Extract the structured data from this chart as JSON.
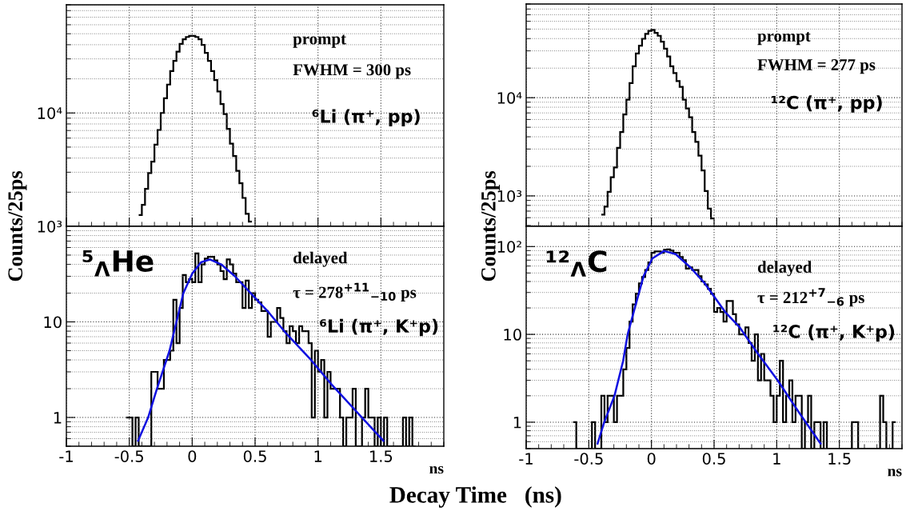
{
  "chart_data": [
    {
      "type": "histogram",
      "color": "#000000",
      "ylabel": "Counts/25ps",
      "bins": [
        -0.425,
        -0.4,
        -0.375,
        -0.35,
        -0.325,
        -0.3,
        -0.275,
        -0.25,
        -0.225,
        -0.2,
        -0.175,
        -0.15,
        -0.125,
        -0.1,
        -0.075,
        -0.05,
        -0.025,
        0,
        0.025,
        0.05,
        0.075,
        0.1,
        0.125,
        0.15,
        0.175,
        0.2,
        0.225,
        0.25,
        0.275,
        0.3,
        0.325,
        0.35,
        0.375,
        0.4,
        0.425,
        0.45,
        0.475
      ],
      "values": [
        1260,
        1550,
        2140,
        2950,
        3720,
        5250,
        7080,
        10000,
        13500,
        17800,
        23400,
        28800,
        34700,
        40700,
        44700,
        46800,
        47900,
        47900,
        46800,
        44700,
        39800,
        33900,
        28800,
        23400,
        19500,
        15500,
        12000,
        9770,
        7240,
        5370,
        4170,
        3090,
        2400,
        1780,
        1290,
        1100
      ],
      "xlim": [
        -1,
        2
      ],
      "ylim": [
        1000,
        90000
      ],
      "xticks": [
        -1,
        -0.5,
        0,
        0.5,
        1,
        1.5
      ],
      "yticks": [
        {
          "value": 1000,
          "label": "10³"
        },
        {
          "value": 10000,
          "label": "10⁴"
        }
      ],
      "log": true,
      "grid": true,
      "tick_labels": "y",
      "annotations": [
        "prompt",
        "FWHM = 300 ps",
        "⁶Li (π⁺, pp)"
      ]
    },
    {
      "type": "histogram",
      "color": "#000000",
      "ylabel": "Counts/25ps",
      "bins": [
        -0.4,
        -0.375,
        -0.35,
        -0.325,
        -0.3,
        -0.275,
        -0.25,
        -0.225,
        -0.2,
        -0.175,
        -0.15,
        -0.125,
        -0.1,
        -0.075,
        -0.05,
        -0.025,
        0,
        0.025,
        0.05,
        0.075,
        0.1,
        0.125,
        0.15,
        0.175,
        0.2,
        0.225,
        0.25,
        0.275,
        0.3,
        0.325,
        0.35,
        0.375,
        0.4,
        0.425,
        0.45,
        0.475,
        0.5
      ],
      "values": [
        645,
        776,
        1100,
        1550,
        1950,
        3090,
        4470,
        6760,
        9550,
        14100,
        20900,
        28200,
        33900,
        39800,
        44700,
        47900,
        49000,
        45700,
        42700,
        37200,
        31600,
        26300,
        20900,
        17800,
        14800,
        12900,
        9550,
        7760,
        6310,
        4470,
        3550,
        2570,
        1820,
        1120,
        741,
        589
      ],
      "xlim": [
        -1,
        2
      ],
      "ylim": [
        490,
        90000
      ],
      "xticks": [
        -1,
        -0.5,
        0,
        0.5,
        1,
        1.5
      ],
      "yticks": [
        {
          "value": 1000,
          "label": "10³"
        },
        {
          "value": 10000,
          "label": "10⁴"
        }
      ],
      "log": true,
      "grid": true,
      "tick_labels": "y",
      "annotations": [
        "prompt",
        "FWHM = 277 ps",
        "¹²C (π⁺, pp)"
      ]
    },
    {
      "type": "histogram",
      "color": "#000000",
      "xlabel": "ns",
      "bins": [
        -0.525,
        -0.5,
        -0.475,
        -0.45,
        -0.425,
        -0.4,
        -0.375,
        -0.35,
        -0.325,
        -0.3,
        -0.275,
        -0.25,
        -0.225,
        -0.2,
        -0.175,
        -0.15,
        -0.125,
        -0.1,
        -0.075,
        -0.05,
        -0.025,
        0,
        0.025,
        0.05,
        0.075,
        0.1,
        0.125,
        0.15,
        0.175,
        0.2,
        0.225,
        0.25,
        0.275,
        0.3,
        0.325,
        0.35,
        0.375,
        0.4,
        0.425,
        0.45,
        0.475,
        0.5,
        0.525,
        0.55,
        0.575,
        0.6,
        0.625,
        0.65,
        0.675,
        0.7,
        0.725,
        0.75,
        0.775,
        0.8,
        0.825,
        0.85,
        0.875,
        0.9,
        0.925,
        0.95,
        0.975,
        1,
        1.025,
        1.05,
        1.075,
        1.1,
        1.125,
        1.15,
        1.175,
        1.2,
        1.225,
        1.25,
        1.275,
        1.3,
        1.325,
        1.35,
        1.375,
        1.4,
        1.425,
        1.45,
        1.475,
        1.5,
        1.525,
        1.55,
        1.575,
        1.6,
        1.625,
        1.65,
        1.675,
        1.7,
        1.725,
        1.75,
        1.775
      ],
      "values": [
        1,
        1,
        null,
        1,
        null,
        null,
        null,
        null,
        3,
        3,
        2,
        2,
        4,
        4,
        5,
        17,
        6,
        14,
        31,
        26,
        28,
        26,
        52,
        26,
        40,
        46,
        48,
        48,
        44,
        40,
        34,
        28,
        45,
        40,
        32,
        26,
        26,
        14,
        27,
        14,
        20,
        17,
        16,
        13,
        13,
        7,
        10,
        10,
        14,
        11,
        8,
        6,
        9,
        8,
        6,
        9,
        8,
        8,
        6,
        1,
        5,
        3,
        4,
        1,
        3,
        2,
        2,
        2,
        1,
        null,
        1,
        1,
        2,
        null,
        null,
        1,
        2,
        1,
        1,
        null,
        1,
        null,
        1,
        null,
        null,
        null,
        null,
        null,
        1,
        null,
        1,
        null
      ],
      "series": [
        {
          "type": "line",
          "color": "#1010e0",
          "x": [
            -0.43,
            -0.35,
            -0.28,
            -0.18,
            -0.125,
            -0.07,
            0,
            0.07,
            0.14,
            0.23,
            0.34,
            0.48,
            0.61,
            0.75,
            0.93,
            1.11,
            1.32,
            1.52
          ],
          "values": [
            0.57,
            1,
            2,
            5,
            10,
            20,
            32,
            42,
            45,
            40,
            30,
            19,
            12.5,
            7.5,
            4.2,
            2.2,
            1.1,
            0.57
          ]
        }
      ],
      "xlim": [
        -1,
        2
      ],
      "ylim": [
        0.5,
        100
      ],
      "xticks": [
        -1,
        -0.5,
        0,
        0.5,
        1,
        1.5
      ],
      "yticks": [
        1,
        10
      ],
      "log": true,
      "grid": true,
      "annotations": [
        "⁵$_{Λ}$He",
        "delayed",
        "τ = 278$^{+11}$$_{−10}$ ps",
        "⁶Li (π⁺, K⁺p)"
      ]
    },
    {
      "type": "histogram",
      "color": "#000000",
      "xlabel": "ns",
      "bins": [
        -0.625,
        -0.6,
        -0.575,
        -0.55,
        -0.525,
        -0.5,
        -0.475,
        -0.45,
        -0.425,
        -0.4,
        -0.375,
        -0.35,
        -0.325,
        -0.3,
        -0.275,
        -0.25,
        -0.225,
        -0.2,
        -0.175,
        -0.15,
        -0.125,
        -0.1,
        -0.075,
        -0.05,
        -0.025,
        0,
        0.025,
        0.05,
        0.075,
        0.1,
        0.125,
        0.15,
        0.175,
        0.2,
        0.225,
        0.25,
        0.275,
        0.3,
        0.325,
        0.35,
        0.375,
        0.4,
        0.425,
        0.45,
        0.475,
        0.5,
        0.525,
        0.55,
        0.575,
        0.6,
        0.625,
        0.65,
        0.675,
        0.7,
        0.725,
        0.75,
        0.775,
        0.8,
        0.825,
        0.85,
        0.875,
        0.9,
        0.925,
        0.95,
        0.975,
        1,
        1.025,
        1.05,
        1.075,
        1.1,
        1.125,
        1.15,
        1.175,
        1.2,
        1.225,
        1.25,
        1.275,
        1.3,
        1.325,
        1.35,
        1.375,
        1.4,
        1.425,
        1.45,
        1.475,
        1.5,
        1.525,
        1.55,
        1.575,
        1.6,
        1.625,
        1.65,
        1.675,
        1.7,
        1.725,
        1.75,
        1.775,
        1.8,
        1.825,
        1.85,
        1.875,
        1.9,
        1.925,
        1.95
      ],
      "values": [
        1,
        null,
        null,
        null,
        null,
        null,
        1,
        null,
        null,
        2,
        1,
        2,
        2,
        1,
        2,
        2,
        4,
        7,
        14,
        22,
        29,
        38,
        45,
        54,
        66,
        85,
        88,
        88,
        85,
        92,
        93,
        90,
        85,
        85,
        76,
        70,
        56,
        58,
        54,
        54,
        46,
        40,
        37,
        33,
        29,
        18,
        20,
        18,
        14,
        24,
        24,
        17,
        13,
        10,
        10,
        12,
        8,
        5,
        10,
        3,
        6,
        3,
        3,
        2,
        1,
        2,
        5,
        1,
        2,
        3,
        1,
        2,
        2,
        null,
        1,
        2,
        null,
        1,
        1,
        null,
        1,
        null,
        null,
        null,
        null,
        null,
        null,
        null,
        null,
        1,
        1,
        null,
        null,
        null,
        null,
        null,
        null,
        null,
        2,
        1,
        null,
        null,
        1
      ],
      "series": [
        {
          "type": "line",
          "color": "#1010e0",
          "x": [
            -0.43,
            -0.377,
            -0.295,
            -0.226,
            -0.19,
            -0.133,
            -0.063,
            0.007,
            0.1,
            0.193,
            0.31,
            0.426,
            0.588,
            0.705,
            0.844,
            1.007,
            1.17,
            1.35
          ],
          "values": [
            0.57,
            1,
            2,
            5,
            10,
            20,
            46,
            73,
            89,
            82,
            58,
            38,
            18,
            12,
            6.2,
            3,
            1.34,
            0.57
          ]
        }
      ],
      "xlim": [
        -1,
        2
      ],
      "ylim": [
        0.5,
        170
      ],
      "xticks": [
        -1,
        -0.5,
        0,
        0.5,
        1,
        1.5
      ],
      "yticks": [
        1,
        10,
        {
          "value": 100,
          "label": "10²"
        }
      ],
      "log": true,
      "grid": true,
      "annotations": [
        "¹²$_{Λ}$C",
        "delayed",
        "τ = 212$^{+7}$$_{−6}$ ps",
        "¹²C (π⁺, K⁺p)",
        "Decay Time   (ns)"
      ]
    }
  ]
}
